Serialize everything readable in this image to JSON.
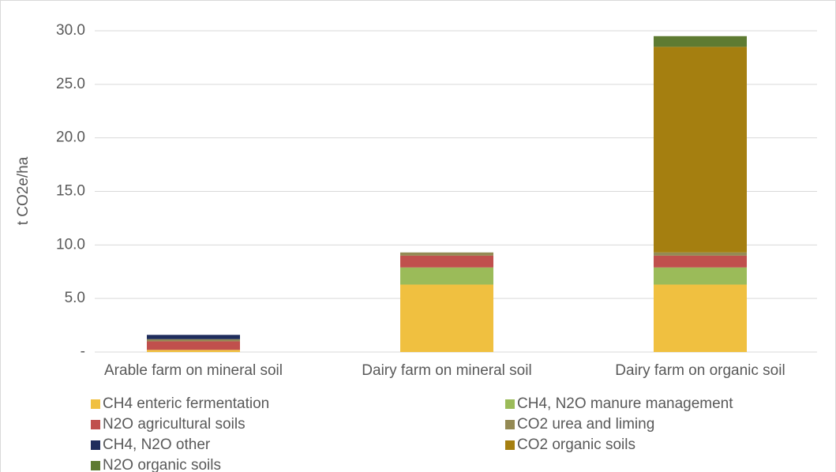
{
  "chart_data": {
    "type": "stacked-bar",
    "y_label": "t CO2e/ha",
    "categories": [
      "Arable farm on mineral soil",
      "Dairy farm on mineral soil",
      "Dairy farm on organic soil"
    ],
    "series": [
      {
        "name": "CH4 enteric fermentation",
        "color": "#f0c040",
        "values": [
          0.2,
          6.3,
          6.3
        ]
      },
      {
        "name": "CH4, N2O manure management",
        "color": "#9bbb59",
        "values": [
          0,
          1.6,
          1.6
        ]
      },
      {
        "name": "N2O agricultural soils",
        "color": "#c0504d",
        "values": [
          0.8,
          1.1,
          1.1
        ]
      },
      {
        "name": "CO2 urea and liming",
        "color": "#948a54",
        "values": [
          0.2,
          0.3,
          0.3
        ]
      },
      {
        "name": "CH4, N2O other",
        "color": "#1f2d5c",
        "values": [
          0.4,
          0,
          0
        ]
      },
      {
        "name": "CO2 organic soils",
        "color": "#a57f10",
        "values": [
          0,
          0,
          19.2
        ]
      },
      {
        "name": "N2O organic soils",
        "color": "#5e7b32",
        "values": [
          0,
          0,
          1.0
        ]
      }
    ],
    "ylim": [
      0,
      30
    ],
    "yticks": [
      {
        "value": 0,
        "label": "-"
      },
      {
        "value": 5,
        "label": "5.0"
      },
      {
        "value": 10,
        "label": "10.0"
      },
      {
        "value": 15,
        "label": "15.0"
      },
      {
        "value": 20,
        "label": "20.0"
      },
      {
        "value": 25,
        "label": "25.0"
      },
      {
        "value": 30,
        "label": "30.0"
      }
    ],
    "grid": true,
    "legend": "bottom"
  }
}
